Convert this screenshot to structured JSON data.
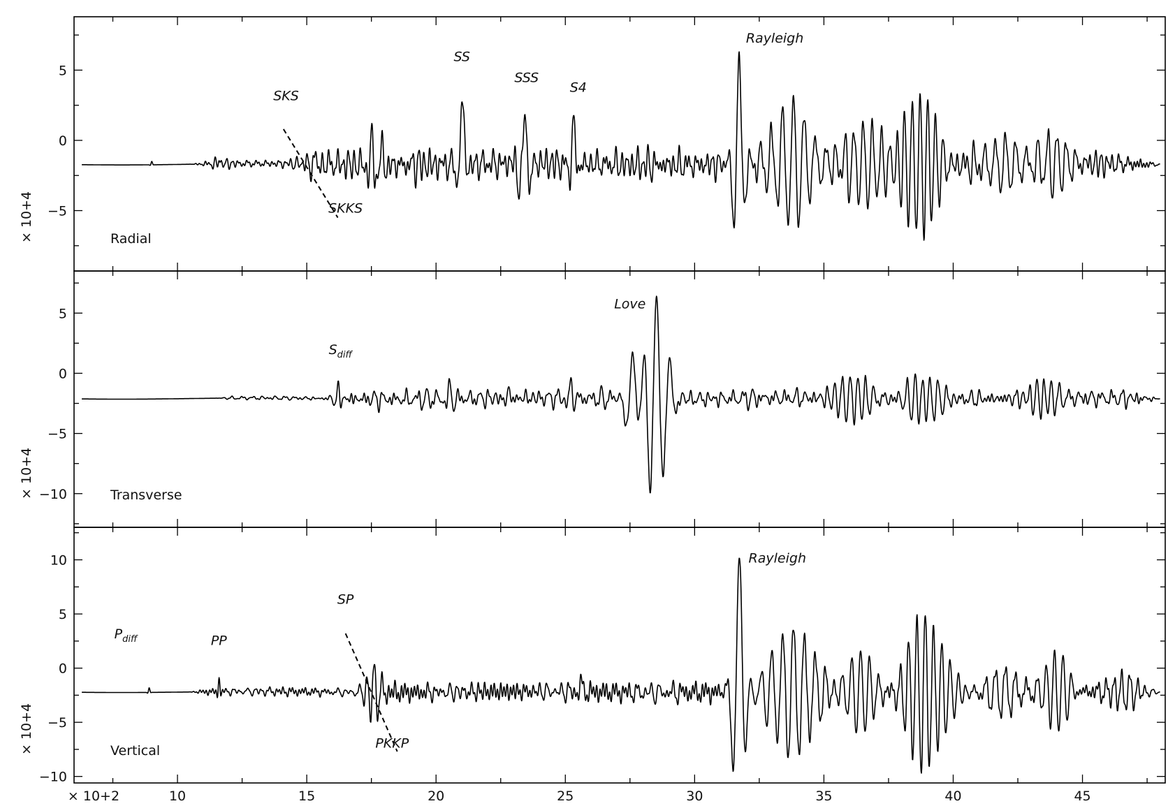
{
  "chart_data": [
    {
      "type": "line",
      "panel_label": "Radial",
      "scale_label": "× 10+4",
      "xlim": [
        6,
        48.2
      ],
      "ylim": [
        -9.3,
        8.8
      ],
      "yticks": [
        -5,
        0,
        5
      ],
      "baseline": -1.7,
      "phases": [
        {
          "label": "SKS",
          "x": 14.2,
          "y": 3.2
        },
        {
          "label": "SKKS",
          "x": 16.5,
          "y": -4.8
        },
        {
          "label": "SS",
          "x": 21.0,
          "y": 6.0
        },
        {
          "label": "SSS",
          "x": 23.5,
          "y": 4.5
        },
        {
          "label": "S4",
          "x": 25.5,
          "y": 3.8
        },
        {
          "label": "Rayleigh",
          "x": 33.1,
          "y": 7.3
        }
      ],
      "dashed_markers": [
        {
          "x": [
            14.1,
            16.2
          ],
          "y": [
            0.8,
            -5.5
          ]
        }
      ],
      "packets": [
        {
          "t": 9.0,
          "a": 0.25,
          "w": 0.05,
          "p": 0.2
        },
        {
          "t": 11.6,
          "a": 0.6,
          "w": 0.07,
          "p": 0.2
        },
        {
          "t": 15.3,
          "a": 1.4,
          "w": 0.2,
          "p": 0.3
        },
        {
          "t": 17.5,
          "a": 2.6,
          "w": 0.15,
          "p": 0.3
        },
        {
          "t": 17.9,
          "a": 2.0,
          "w": 0.2,
          "p": 0.35
        },
        {
          "t": 21.0,
          "a": 4.5,
          "w": 0.18,
          "p": 0.55
        },
        {
          "t": 23.4,
          "a": 3.0,
          "w": 0.28,
          "p": 0.5
        },
        {
          "t": 25.3,
          "a": 3.0,
          "w": 0.15,
          "p": 0.45
        },
        {
          "t": 31.7,
          "a": 7.5,
          "w": 0.25,
          "p": 0.48
        },
        {
          "t": 33.8,
          "a": 4.5,
          "w": 1.0,
          "p": 0.42
        },
        {
          "t": 36.5,
          "a": 3.0,
          "w": 1.0,
          "p": 0.35
        },
        {
          "t": 38.7,
          "a": 5.5,
          "w": 0.9,
          "p": 0.3
        },
        {
          "t": 42.0,
          "a": 1.6,
          "w": 1.2,
          "p": 0.4
        },
        {
          "t": 44.0,
          "a": 2.0,
          "w": 0.8,
          "p": 0.35
        }
      ],
      "noise": [
        {
          "from": 11.0,
          "to": 15.0,
          "a": 0.25
        },
        {
          "from": 15.0,
          "to": 31.0,
          "a": 0.8
        },
        {
          "from": 31.0,
          "to": 47.5,
          "a": 0.6
        }
      ]
    },
    {
      "type": "line",
      "panel_label": "Transverse",
      "scale_label": "× 10+4",
      "xlim": [
        6,
        48.2
      ],
      "ylim": [
        -12.8,
        8.5
      ],
      "yticks": [
        -10,
        -5,
        0,
        5
      ],
      "baseline": -2.1,
      "phases": [
        {
          "label": "S",
          "sub": "diff",
          "x": 16.3,
          "y": 2.0
        },
        {
          "label": "Love",
          "x": 27.5,
          "y": 5.8
        }
      ],
      "dashed_markers": [],
      "packets": [
        {
          "t": 16.2,
          "a": 0.8,
          "w": 0.12,
          "p": 0.3
        },
        {
          "t": 20.5,
          "a": 1.2,
          "w": 0.2,
          "p": 0.35
        },
        {
          "t": 22.8,
          "a": 1.0,
          "w": 0.2,
          "p": 0.35
        },
        {
          "t": 25.2,
          "a": 1.3,
          "w": 0.15,
          "p": 0.35
        },
        {
          "t": 27.6,
          "a": 3.5,
          "w": 0.35,
          "p": 0.65
        },
        {
          "t": 28.5,
          "a": 8.5,
          "w": 0.55,
          "p": 0.52
        },
        {
          "t": 36.0,
          "a": 1.9,
          "w": 0.8,
          "p": 0.3
        },
        {
          "t": 38.8,
          "a": 2.3,
          "w": 0.9,
          "p": 0.3
        },
        {
          "t": 43.5,
          "a": 2.0,
          "w": 0.6,
          "p": 0.28
        }
      ],
      "noise": [
        {
          "from": 12.0,
          "to": 16.0,
          "a": 0.12
        },
        {
          "from": 16.0,
          "to": 27.0,
          "a": 0.6
        },
        {
          "from": 27.0,
          "to": 47.5,
          "a": 0.55
        }
      ]
    },
    {
      "type": "line",
      "panel_label": "Vertical",
      "scale_label": "× 10+4",
      "x_scale_label": "× 10+2",
      "xlim": [
        6,
        48.2
      ],
      "ylim": [
        -10.6,
        13.0
      ],
      "yticks": [
        -10,
        -5,
        0,
        5,
        10
      ],
      "xticks": [
        10,
        15,
        20,
        25,
        30,
        35,
        40,
        45
      ],
      "baseline": -2.2,
      "phases": [
        {
          "label": "P",
          "sub": "diff",
          "x": 8.0,
          "y": 3.2
        },
        {
          "label": "PP",
          "x": 11.6,
          "y": 2.6
        },
        {
          "label": "SP",
          "x": 16.5,
          "y": 6.4
        },
        {
          "label": "PKKP",
          "x": 18.3,
          "y": -6.9
        },
        {
          "label": "Rayleigh",
          "x": 33.2,
          "y": 10.2
        }
      ],
      "dashed_markers": [
        {
          "x": [
            16.5,
            18.5
          ],
          "y": [
            3.2,
            -7.7
          ]
        }
      ],
      "packets": [
        {
          "t": 8.9,
          "a": 0.45,
          "w": 0.05,
          "p": 0.2
        },
        {
          "t": 11.6,
          "a": 1.3,
          "w": 0.07,
          "p": 0.2
        },
        {
          "t": 17.6,
          "a": 2.6,
          "w": 0.3,
          "p": 0.3
        },
        {
          "t": 25.6,
          "a": 1.3,
          "w": 0.12,
          "p": 0.35
        },
        {
          "t": 31.7,
          "a": 12.5,
          "w": 0.28,
          "p": 0.55
        },
        {
          "t": 33.8,
          "a": 6.0,
          "w": 1.1,
          "p": 0.42
        },
        {
          "t": 36.4,
          "a": 3.5,
          "w": 1.0,
          "p": 0.35
        },
        {
          "t": 38.9,
          "a": 7.5,
          "w": 0.95,
          "p": 0.32
        },
        {
          "t": 42.0,
          "a": 2.0,
          "w": 0.9,
          "p": 0.38
        },
        {
          "t": 43.9,
          "a": 3.5,
          "w": 0.7,
          "p": 0.33
        },
        {
          "t": 46.5,
          "a": 1.8,
          "w": 0.7,
          "p": 0.3
        }
      ],
      "noise": [
        {
          "from": 11.0,
          "to": 17.0,
          "a": 0.3
        },
        {
          "from": 17.0,
          "to": 31.0,
          "a": 0.75
        },
        {
          "from": 31.0,
          "to": 47.5,
          "a": 0.6
        }
      ]
    }
  ]
}
